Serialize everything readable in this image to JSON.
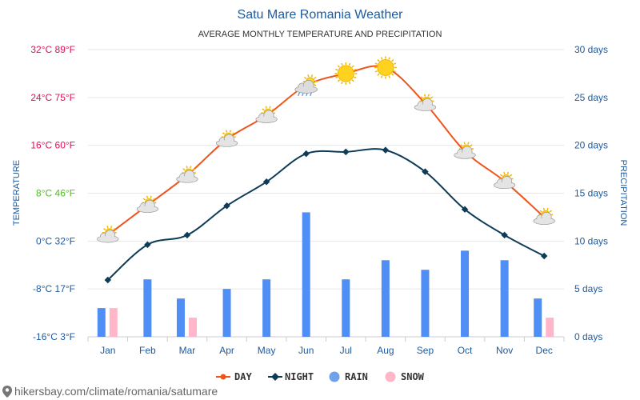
{
  "title": "Satu Mare Romania Weather",
  "subtitle": "AVERAGE MONTHLY TEMPERATURE AND PRECIPITATION",
  "footer": "hikersbay.com/climate/romania/satumare",
  "colors": {
    "day": "#f0541a",
    "night": "#0e3b58",
    "rain": "#4f8ef5",
    "snow": "#ffb6c8",
    "legend_rain": "#6fa2ea",
    "tick_warm": "#e0105a",
    "tick_mild": "#55bb22",
    "tick_cold": "#1d5a9e"
  },
  "chart_data": {
    "type": "line+bar",
    "title": "Satu Mare Romania Weather",
    "subtitle": "AVERAGE MONTHLY TEMPERATURE AND PRECIPITATION",
    "categories": [
      "Jan",
      "Feb",
      "Mar",
      "Apr",
      "May",
      "Jun",
      "Jul",
      "Aug",
      "Sep",
      "Oct",
      "Nov",
      "Dec"
    ],
    "y_left": {
      "label": "TEMPERATURE",
      "range": [
        -16,
        32
      ],
      "ticks": [
        {
          "value": 32,
          "text": "32°C 89°F"
        },
        {
          "value": 24,
          "text": "24°C 75°F"
        },
        {
          "value": 16,
          "text": "16°C 60°F"
        },
        {
          "value": 8,
          "text": "8°C 46°F"
        },
        {
          "value": 0,
          "text": "0°C 32°F"
        },
        {
          "value": -8,
          "text": "-8°C 17°F"
        },
        {
          "value": -16,
          "text": "-16°C 3°F"
        }
      ]
    },
    "y_right": {
      "label": "PRECIPITATION",
      "range": [
        0,
        30
      ],
      "ticks": [
        {
          "value": 30,
          "text": "30 days"
        },
        {
          "value": 25,
          "text": "25 days"
        },
        {
          "value": 20,
          "text": "20 days"
        },
        {
          "value": 15,
          "text": "15 days"
        },
        {
          "value": 10,
          "text": "10 days"
        },
        {
          "value": 5,
          "text": "5 days"
        },
        {
          "value": 0,
          "text": "0 days"
        }
      ]
    },
    "grid": true,
    "legend_position": "bottom",
    "series": [
      {
        "name": "DAY",
        "type": "line",
        "axis": "left",
        "values": [
          1,
          6,
          11,
          17,
          21,
          26,
          28,
          29,
          23,
          15,
          10,
          4
        ],
        "icons": [
          "sun-cloud",
          "sun-cloud",
          "sun-cloud",
          "sun-cloud",
          "sun-cloud",
          "cloud-rain-sun",
          "sun",
          "sun",
          "sun-cloud",
          "sun-cloud",
          "sun-cloud",
          "sun-cloud"
        ]
      },
      {
        "name": "NIGHT",
        "type": "line",
        "axis": "left",
        "values": [
          -6.5,
          -0.6,
          1,
          5.9,
          9.9,
          14.6,
          14.9,
          15.2,
          11.6,
          5.3,
          1,
          -2.5
        ]
      },
      {
        "name": "RAIN",
        "type": "bar",
        "axis": "right",
        "values": [
          3,
          6,
          4,
          5,
          6,
          13,
          6,
          8,
          7,
          9,
          8,
          4
        ]
      },
      {
        "name": "SNOW",
        "type": "bar",
        "axis": "right",
        "values": [
          3,
          0,
          2,
          0,
          0,
          0,
          0,
          0,
          0,
          0,
          0,
          2
        ]
      }
    ]
  }
}
